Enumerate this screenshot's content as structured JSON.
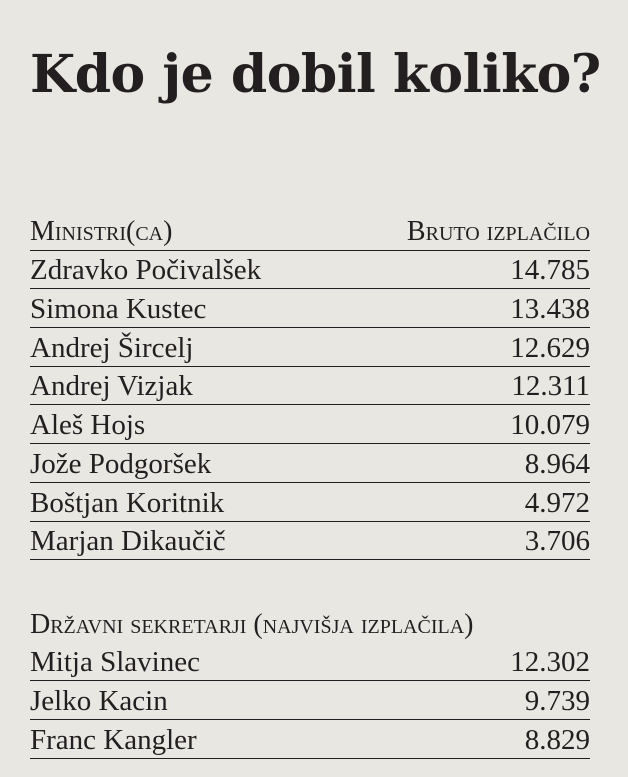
{
  "title": "Kdo je dobil koliko?",
  "ministers": {
    "header_name": "Ministri(ca)",
    "header_value": "Bruto izplačilo",
    "rows": [
      {
        "name": "Zdravko Počivalšek",
        "value": "14.785"
      },
      {
        "name": "Simona Kustec",
        "value": "13.438"
      },
      {
        "name": "Andrej Šircelj",
        "value": "12.629"
      },
      {
        "name": "Andrej Vizjak",
        "value": "12.311"
      },
      {
        "name": "Aleš Hojs",
        "value": "10.079"
      },
      {
        "name": "Jože Podgoršek",
        "value": "8.964"
      },
      {
        "name": "Boštjan Koritnik",
        "value": "4.972"
      },
      {
        "name": "Marjan Dikaučič",
        "value": "3.706"
      }
    ]
  },
  "secretaries": {
    "header": "Državni sekretarji (najvišja izplačila)",
    "rows": [
      {
        "name": "Mitja Slavinec",
        "value": "12.302"
      },
      {
        "name": "Jelko Kacin",
        "value": "9.739"
      },
      {
        "name": "Franc Kangler",
        "value": "8.829"
      }
    ]
  }
}
